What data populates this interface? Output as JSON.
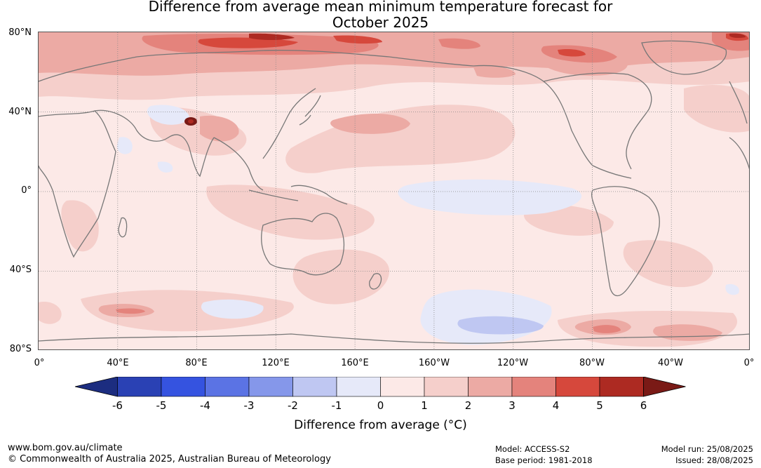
{
  "title": {
    "line1": "Difference from average mean minimum temperature forecast for",
    "line2": "October 2025"
  },
  "map": {
    "projection": "equirectangular, Pacific-centred",
    "lat_range": [
      -80,
      80
    ],
    "lon_range": [
      0,
      360
    ],
    "gridlines": "dotted",
    "lat_labels": [
      "80°N",
      "40°N",
      "0°",
      "40°S",
      "80°S"
    ],
    "lon_labels": [
      "0°",
      "40°E",
      "80°E",
      "120°E",
      "160°E",
      "160°W",
      "120°W",
      "80°W",
      "40°W",
      "0°"
    ]
  },
  "colorbar": {
    "title": "Difference from average (°C)",
    "ticks": [
      "-6",
      "-5",
      "-4",
      "-3",
      "-2",
      "-1",
      "0",
      "1",
      "2",
      "3",
      "4",
      "5",
      "6"
    ],
    "colors": [
      "#1c2d80",
      "#2a41b4",
      "#3553e0",
      "#5b73e4",
      "#8597ea",
      "#bfc7f2",
      "#e6e9f9",
      "#fce9e7",
      "#f5cfcb",
      "#ecaaa4",
      "#e4837c",
      "#d6483c",
      "#ad2a22",
      "#7a1a16"
    ]
  },
  "footer": {
    "url": "www.bom.gov.au/climate",
    "copyright": "© Commonwealth of Australia 2025, Australian Bureau of Meteorology",
    "model": "Model: ACCESS-S2",
    "base_period": "Base period: 1981-2018",
    "model_run": "Model run: 25/08/2025",
    "issued": "Issued: 28/08/2025"
  }
}
